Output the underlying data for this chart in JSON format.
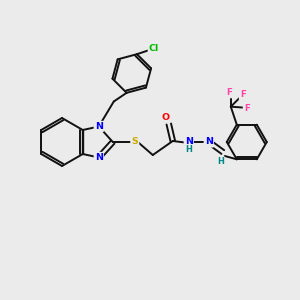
{
  "background_color": "#ebebeb",
  "atom_colors": {
    "N": "#0000ff",
    "O": "#ff0000",
    "S": "#ccaa00",
    "Cl": "#00bb00",
    "F": "#ff44aa",
    "C": "#111111",
    "H": "#008888"
  },
  "bond_color": "#111111",
  "bond_width": 1.4,
  "font_size": 6.8
}
